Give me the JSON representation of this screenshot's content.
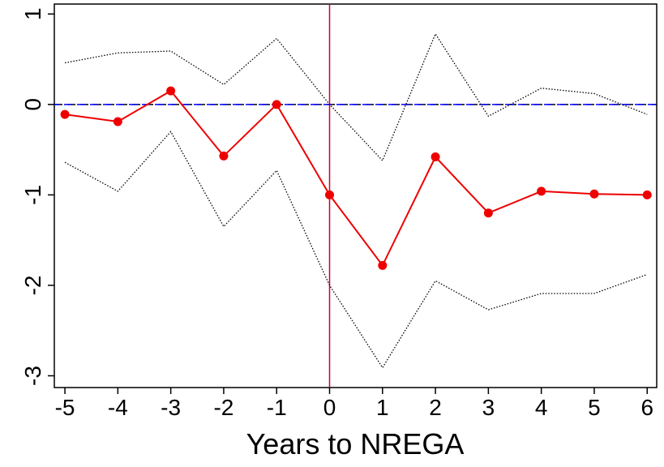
{
  "chart_data": {
    "type": "line",
    "x_label": "Years to NREGA",
    "x": [
      -5,
      -4,
      -3,
      -2,
      -1,
      0,
      1,
      2,
      3,
      4,
      5,
      6
    ],
    "series": [
      {
        "color": "#000000",
        "style": "dotted",
        "markers": false,
        "values": [
          0.46,
          0.57,
          0.59,
          0.22,
          0.73,
          0,
          -0.62,
          0.78,
          -0.13,
          0.18,
          0.12,
          -0.11
        ]
      },
      {
        "color": "#000000",
        "style": "dotted",
        "markers": false,
        "values": [
          -0.64,
          -0.96,
          -0.3,
          -1.35,
          -0.73,
          -2.0,
          -2.91,
          -1.95,
          -2.27,
          -2.09,
          -2.09,
          -1.88
        ]
      },
      {
        "color": "#ee0000",
        "style": "solid",
        "markers": true,
        "values": [
          -0.11,
          -0.19,
          0.15,
          -0.57,
          0,
          -1.0,
          -1.78,
          -0.58,
          -1.2,
          -0.96,
          -0.99,
          -1.0
        ]
      }
    ],
    "xlim": [
      -5.2,
      6.18
    ],
    "ylim": [
      -3.13,
      1.11
    ],
    "xticks": [
      -5,
      -4,
      -3,
      -2,
      -1,
      0,
      1,
      2,
      3,
      4,
      5,
      6
    ],
    "yticks": [
      -3,
      -2,
      -1,
      0,
      1
    ],
    "vline": {
      "value": 0,
      "color": "#cc0033"
    },
    "hline": {
      "value": 0,
      "color": "#0000ff",
      "under_color": "#000000"
    }
  }
}
